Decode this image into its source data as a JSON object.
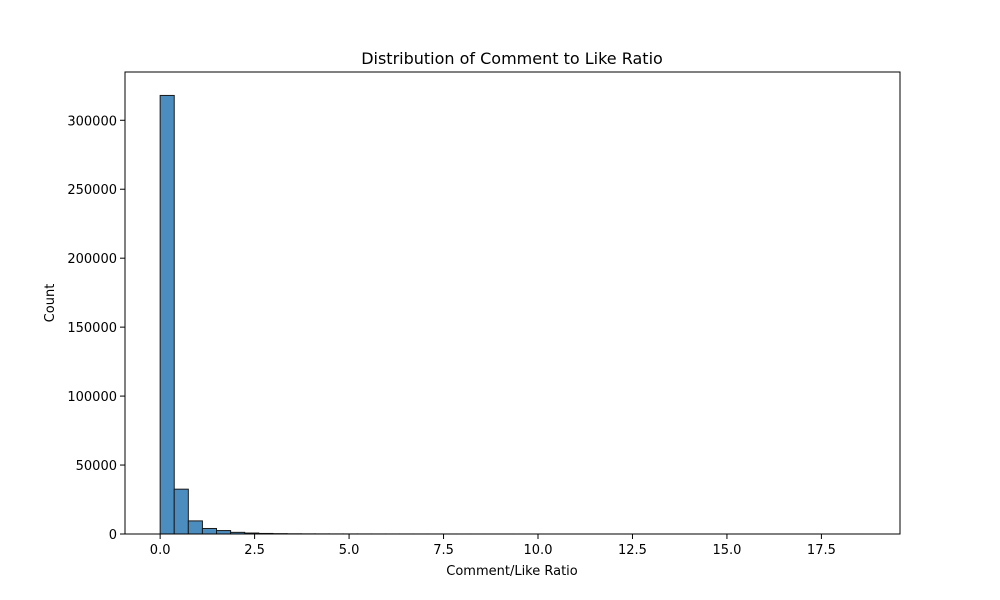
{
  "chart_data": {
    "type": "bar",
    "title": "Distribution of Comment to Like Ratio",
    "xlabel": "Comment/Like Ratio",
    "ylabel": "Count",
    "xlim": [
      -0.93,
      19.58
    ],
    "ylim": [
      0,
      335000
    ],
    "xticks": [
      0.0,
      2.5,
      5.0,
      7.5,
      10.0,
      12.5,
      15.0,
      17.5
    ],
    "xtick_labels": [
      "0.0",
      "2.5",
      "5.0",
      "7.5",
      "10.0",
      "12.5",
      "15.0",
      "17.5"
    ],
    "yticks": [
      0,
      50000,
      100000,
      150000,
      200000,
      250000,
      300000
    ],
    "ytick_labels": [
      "0",
      "50000",
      "100000",
      "150000",
      "200000",
      "250000",
      "300000"
    ],
    "grid": false,
    "bar_color": "#4c8dbf",
    "bar_edge_color": "#1a1a1a",
    "bins": {
      "start": 0.0,
      "width": 0.373,
      "counts": [
        318000,
        32500,
        9500,
        4000,
        2500,
        1200,
        700,
        400,
        250,
        150,
        100,
        80,
        60,
        50,
        40,
        35,
        30,
        25,
        20,
        18,
        15,
        12,
        10,
        9,
        8,
        7,
        6,
        5,
        5,
        4,
        4,
        3,
        3,
        3,
        2,
        2,
        2,
        2,
        1,
        1,
        1,
        1,
        1,
        1,
        1,
        1,
        1,
        1,
        1,
        1
      ]
    }
  }
}
